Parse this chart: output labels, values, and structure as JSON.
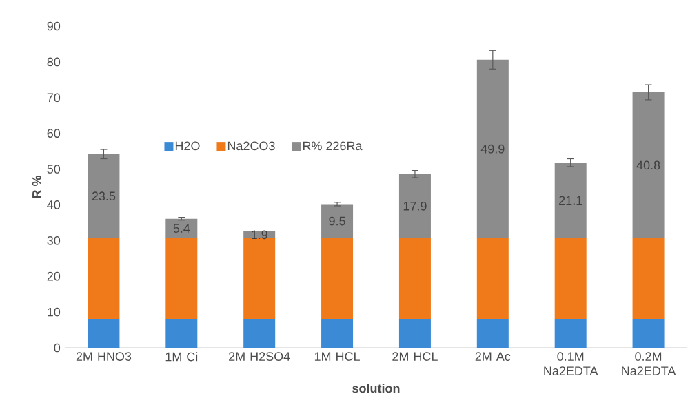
{
  "chart_data": {
    "type": "bar",
    "stacked": true,
    "xlabel": "solution",
    "ylabel": "R %",
    "categories": [
      "2M HNO3",
      "1M Ci",
      "2M H2SO4",
      "1M HCL",
      "2M HCL",
      "2M Ac",
      "0.1M Na2EDTA",
      "0.2M Na2EDTA"
    ],
    "series": [
      {
        "name": "H2O",
        "color": "#3a8ad6",
        "values": [
          8.1,
          8.1,
          8.1,
          8.1,
          8.1,
          8.1,
          8.1,
          8.1
        ]
      },
      {
        "name": "Na2CO3",
        "color": "#f07a1a",
        "values": [
          22.6,
          22.6,
          22.6,
          22.6,
          22.6,
          22.6,
          22.6,
          22.6
        ]
      },
      {
        "name": "R% 226Ra",
        "color": "#8c8c8c",
        "values": [
          23.5,
          5.4,
          1.9,
          9.5,
          17.9,
          49.9,
          21.1,
          40.8
        ],
        "value_labels": [
          "23.5",
          "5.4",
          "1.9",
          "9.5",
          "17.9",
          "49.9",
          "21.1",
          "40.8"
        ],
        "errors": [
          1.3,
          0.4,
          null,
          0.5,
          1.0,
          2.6,
          1.1,
          2.1
        ]
      }
    ],
    "ylim": [
      0,
      90
    ],
    "yticks": [
      0,
      10,
      20,
      30,
      40,
      50,
      60,
      70,
      80,
      90
    ],
    "legend": "top",
    "grid": false
  }
}
